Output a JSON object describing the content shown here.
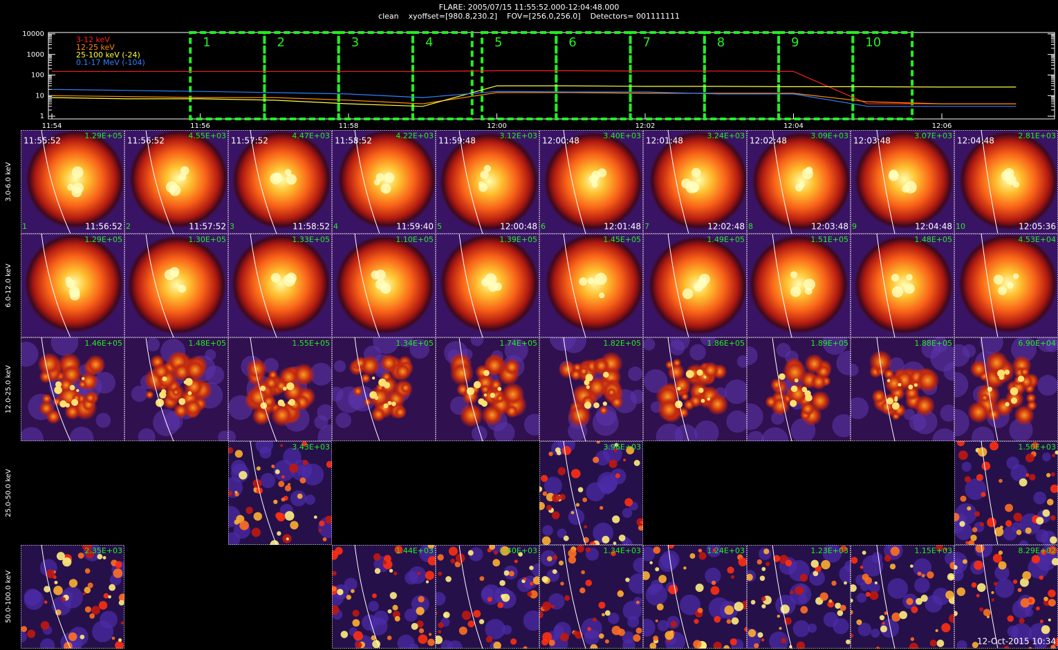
{
  "header": {
    "title": "FLARE: 2005/07/15 11:55:52.000-12:04:48.000",
    "subtitle": "clean    xyoffset=[980.8,230.2]    FOV=[256.0,256.0]    Detectors= 001111111"
  },
  "chart_data": {
    "type": "line",
    "log_scale_y": true,
    "x": [
      "11:54",
      "11:55",
      "11:56",
      "11:57",
      "11:58",
      "11:59",
      "12:00",
      "12:01",
      "12:02",
      "12:03",
      "12:04",
      "12:05",
      "12:06",
      "12:07"
    ],
    "series": [
      {
        "name": "3-12 keV",
        "color": "#ff2020",
        "values": [
          150,
          150,
          150,
          150,
          150,
          150,
          160,
          160,
          155,
          155,
          150,
          4,
          4,
          4
        ]
      },
      {
        "name": "12-25 keV",
        "color": "#ff8c00",
        "values": [
          10,
          9,
          8,
          8,
          6,
          4,
          14,
          14,
          13,
          13,
          13,
          5,
          4,
          4
        ]
      },
      {
        "name": "25-100 keV (-24)",
        "color": "#ffff40",
        "values": [
          8,
          7,
          7,
          6,
          4,
          3,
          30,
          30,
          28,
          28,
          27,
          27,
          26,
          26
        ]
      },
      {
        "name": "0.1-17 MeV (-104)",
        "color": "#3080ff",
        "values": [
          20,
          18,
          16,
          14,
          12,
          8,
          16,
          15,
          15,
          12,
          12,
          3,
          3,
          3
        ]
      }
    ],
    "ylim": [
      1,
      10000
    ],
    "yticks": [
      1,
      10,
      100,
      1000,
      10000
    ],
    "xticks": [
      "11:54",
      "11:56",
      "11:58",
      "12:00",
      "12:02",
      "12:04",
      "12:06"
    ]
  },
  "image_grid": {
    "columns": [
      {
        "number": "1",
        "start": "11:55:52",
        "end": "11:56:52"
      },
      {
        "number": "2",
        "start": "11:56:52",
        "end": "11:57:52"
      },
      {
        "number": "3",
        "start": "11:57:52",
        "end": "11:58:52"
      },
      {
        "number": "4",
        "start": "11:58:52",
        "end": "11:59:40"
      },
      {
        "number": "5",
        "start": "11:59:48",
        "end": "12:00:48"
      },
      {
        "number": "6",
        "start": "12:00:48",
        "end": "12:01:48"
      },
      {
        "number": "7",
        "start": "12:01:48",
        "end": "12:02:48"
      },
      {
        "number": "8",
        "start": "12:02:48",
        "end": "12:03:48"
      },
      {
        "number": "9",
        "start": "12:03:48",
        "end": "12:04:48"
      },
      {
        "number": "10",
        "start": "12:04:48",
        "end": "12:05:36"
      }
    ],
    "rows": [
      {
        "label": "3.0-6.0 keV",
        "maxima": [
          "1.29E+05",
          "4.55E+03",
          "4.47E+03",
          "4.22E+03",
          "3.12E+03",
          "3.40E+03",
          "3.24E+03",
          "3.09E+03",
          "3.07E+03",
          "2.81E+03"
        ]
      },
      {
        "label": "6.0-12.0 keV",
        "maxima": [
          "1.29E+05",
          "1.30E+05",
          "1.33E+05",
          "1.10E+05",
          "1.39E+05",
          "1.45E+05",
          "1.49E+05",
          "1.51E+05",
          "1.48E+05",
          "4.53E+04"
        ]
      },
      {
        "label": "12.0-25.0 keV",
        "maxima": [
          "1.46E+05",
          "1.48E+05",
          "1.55E+05",
          "1.34E+05",
          "1.74E+05",
          "1.82E+05",
          "1.86E+05",
          "1.89E+05",
          "1.88E+05",
          "6.90E+04"
        ]
      },
      {
        "label": "25.0-50.0 keV",
        "maxima": [
          null,
          null,
          "3.43E+03",
          null,
          null,
          "3.96E+03",
          null,
          null,
          null,
          "1.50E+03"
        ]
      },
      {
        "label": "50.0-100.0 keV",
        "maxima": [
          "2.35E+03",
          null,
          null,
          "1.44E+03",
          "1.40E+03",
          "1.34E+03",
          "1.24E+03",
          "1.23E+03",
          "1.15E+03",
          "8.29E+02"
        ]
      }
    ],
    "timestamp": "12-Oct-2015 10:34"
  }
}
